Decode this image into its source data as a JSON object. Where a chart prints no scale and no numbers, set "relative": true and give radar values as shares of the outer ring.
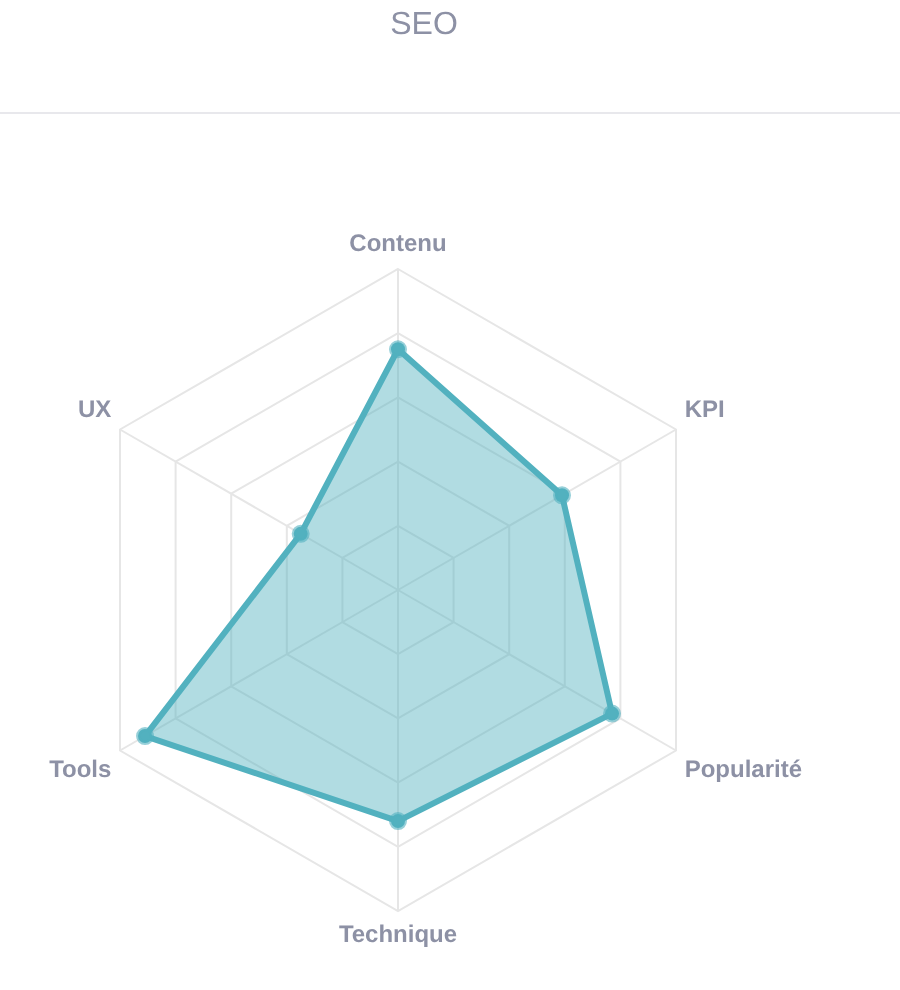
{
  "chart_data": {
    "type": "radar",
    "title": "SEO",
    "relative": true,
    "categories": [
      "Contenu",
      "KPI",
      "Popularité",
      "Technique",
      "Tools",
      "UX"
    ],
    "series": [
      {
        "color": "#52b1bf",
        "values": [
          0.75,
          0.59,
          0.77,
          0.72,
          0.91,
          0.35
        ]
      }
    ],
    "legend": false,
    "marker": "circle"
  }
}
